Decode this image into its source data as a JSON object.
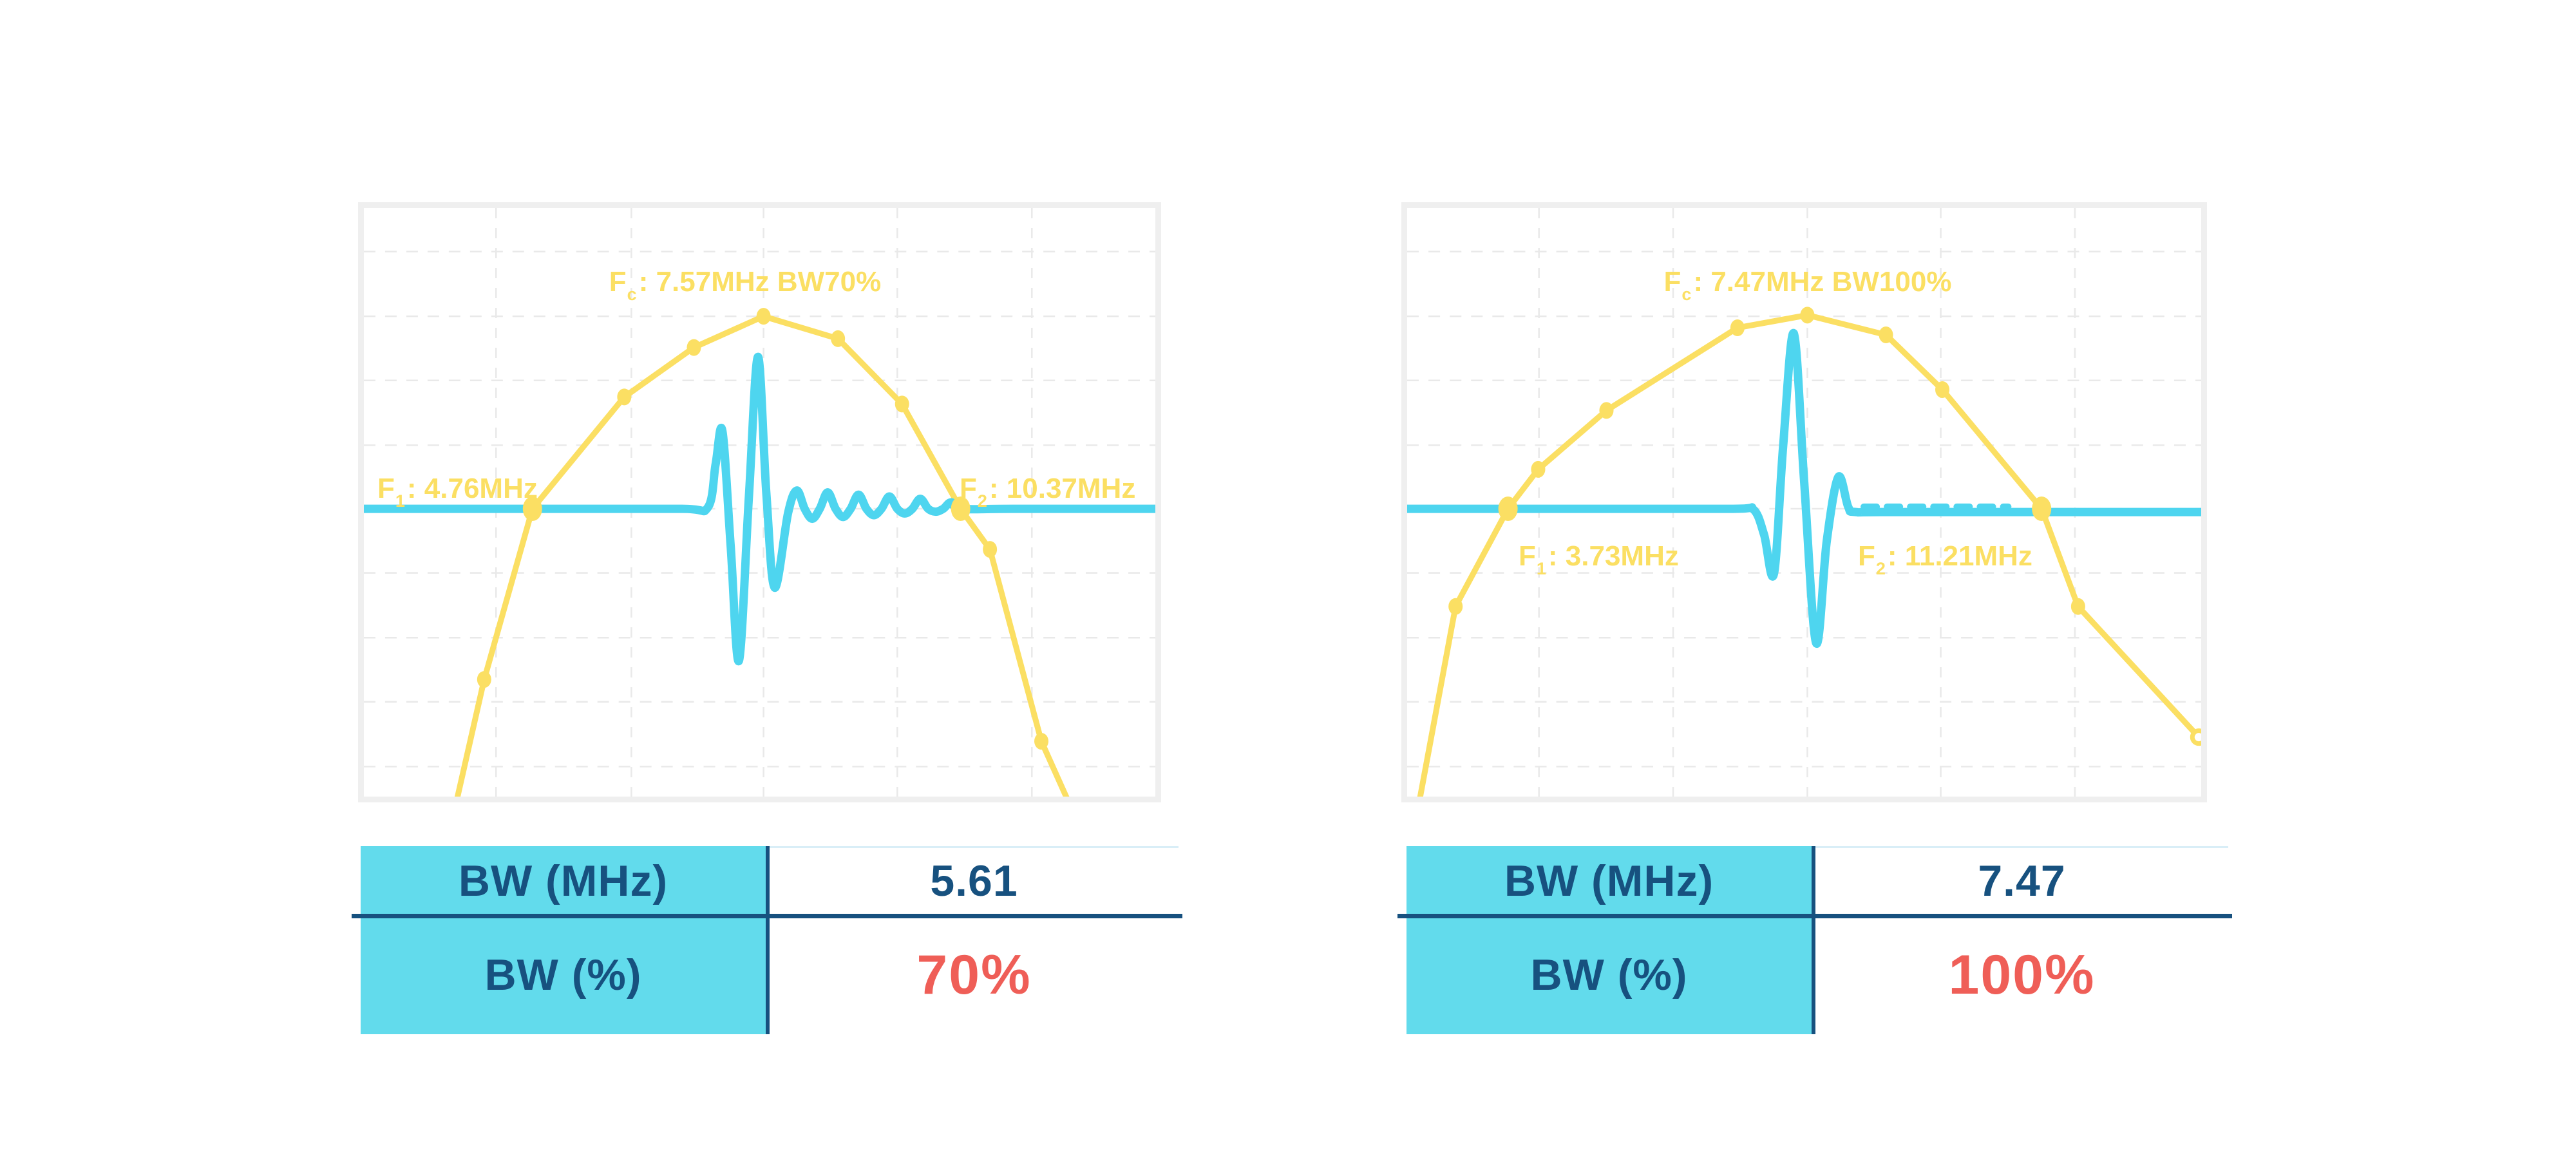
{
  "colors": {
    "yellow": "#FBDF63",
    "cyan": "#4ED5EF",
    "tableCyan": "#62DBEC",
    "navy": "#17517F",
    "red": "#EF5E57",
    "panelBorder": "#EFEFEF",
    "grid": "#E9E9E9",
    "faint": "#D9EEF7",
    "background": "#FFFFFF"
  },
  "panels": [
    {
      "fc": {
        "base": "F",
        "sub": "c",
        "rest": ": 7.57MHz BW70%"
      },
      "f1": {
        "base": "F",
        "sub": "1",
        "rest": ": 4.76MHz"
      },
      "f2": {
        "base": "F",
        "sub": "2",
        "rest": ": 10.37MHz"
      },
      "table": {
        "rows": [
          {
            "label": "BW (MHz)",
            "value": "5.61"
          },
          {
            "label": "BW (%)",
            "value": "70%"
          }
        ]
      }
    },
    {
      "fc": {
        "base": "F",
        "sub": "c",
        "rest": ": 7.47MHz BW100%"
      },
      "f1": {
        "base": "F",
        "sub": "1",
        "rest": ": 3.73MHz"
      },
      "f2": {
        "base": "F",
        "sub": "2",
        "rest": ": 11.21MHz"
      },
      "table": {
        "rows": [
          {
            "label": "BW (MHz)",
            "value": "7.47"
          },
          {
            "label": "BW (%)",
            "value": "100%"
          }
        ]
      }
    }
  ],
  "chart_data": [
    {
      "type": "line",
      "title": "Fc: 7.57MHz BW70%",
      "xlabel": "frequency (MHz, axis unlabeled)",
      "ylabel": "relative amplitude (axis unlabeled)",
      "legend": "none",
      "grid": {
        "style": "dashed",
        "v": [
          0.167,
          0.338,
          0.505,
          0.674,
          0.844
        ],
        "h": [
          0.074,
          0.184,
          0.293,
          0.403,
          0.511,
          0.62,
          0.73,
          0.839,
          0.949
        ]
      },
      "key_values": {
        "fc_mhz": 7.57,
        "f1_mhz": 4.76,
        "f2_mhz": 10.37,
        "bw_mhz": 5.61,
        "bw_percent": 70,
        "baseline_y_fraction": 0.511
      },
      "series": [
        {
          "name": "transducer-frequency-spectrum",
          "color": "#FBDF63",
          "width": 9,
          "smooth": false,
          "points": [
            [
              0.115,
              1.02
            ],
            [
              0.152,
              0.801
            ],
            [
              0.213,
              0.511
            ],
            [
              0.329,
              0.321
            ],
            [
              0.417,
              0.237
            ],
            [
              0.505,
              0.184
            ],
            [
              0.599,
              0.222
            ],
            [
              0.68,
              0.333
            ],
            [
              0.754,
              0.511
            ],
            [
              0.791,
              0.58
            ],
            [
              0.856,
              0.906
            ],
            [
              0.904,
              1.05
            ]
          ],
          "markers": {
            "small": [
              [
                0.152,
                0.801
              ],
              [
                0.329,
                0.321
              ],
              [
                0.417,
                0.237
              ],
              [
                0.505,
                0.184
              ],
              [
                0.599,
                0.222
              ],
              [
                0.68,
                0.333
              ],
              [
                0.791,
                0.58
              ],
              [
                0.856,
                0.906
              ]
            ],
            "big": [
              [
                0.213,
                0.511
              ],
              [
                0.754,
                0.511
              ]
            ]
          }
        },
        {
          "name": "pulse-echo-waveform",
          "color": "#4ED5EF",
          "width": 13,
          "smooth": true,
          "points": [
            [
              0,
              0.511
            ],
            [
              0.22,
              0.511
            ],
            [
              0.4,
              0.511
            ],
            [
              0.4345,
              0.509
            ],
            [
              0.4445,
              0.435
            ],
            [
              0.453,
              0.379
            ],
            [
              0.4635,
              0.575
            ],
            [
              0.474,
              0.769
            ],
            [
              0.4865,
              0.49
            ],
            [
              0.498,
              0.253
            ],
            [
              0.5085,
              0.485
            ],
            [
              0.519,
              0.645
            ],
            [
              0.536,
              0.518
            ],
            [
              0.547,
              0.48
            ],
            [
              0.557,
              0.511
            ],
            [
              0.5665,
              0.528
            ],
            [
              0.576,
              0.511
            ],
            [
              0.586,
              0.483
            ],
            [
              0.596,
              0.511
            ],
            [
              0.6055,
              0.525
            ],
            [
              0.615,
              0.511
            ],
            [
              0.625,
              0.487
            ],
            [
              0.635,
              0.511
            ],
            [
              0.6445,
              0.522
            ],
            [
              0.654,
              0.511
            ],
            [
              0.664,
              0.49
            ],
            [
              0.674,
              0.511
            ],
            [
              0.6835,
              0.519
            ],
            [
              0.693,
              0.511
            ],
            [
              0.703,
              0.494
            ],
            [
              0.713,
              0.511
            ],
            [
              0.7225,
              0.516
            ],
            [
              0.732,
              0.511
            ],
            [
              0.742,
              0.5
            ],
            [
              0.754,
              0.511
            ],
            [
              0.82,
              0.511
            ],
            [
              1,
              0.511
            ]
          ]
        }
      ]
    },
    {
      "type": "line",
      "title": "Fc: 7.47MHz BW100%",
      "xlabel": "frequency (MHz, axis unlabeled)",
      "ylabel": "relative amplitude (axis unlabeled)",
      "legend": "none",
      "grid": {
        "style": "dashed",
        "v": [
          0.166,
          0.335,
          0.504,
          0.672,
          0.841
        ],
        "h": [
          0.074,
          0.184,
          0.293,
          0.403,
          0.511,
          0.62,
          0.73,
          0.839,
          0.949
        ]
      },
      "key_values": {
        "fc_mhz": 7.47,
        "f1_mhz": 3.73,
        "f2_mhz": 11.21,
        "bw_mhz": 7.47,
        "bw_percent": 100,
        "baseline_y_fraction": 0.511
      },
      "series": [
        {
          "name": "transducer-frequency-spectrum",
          "color": "#FBDF63",
          "width": 9,
          "smooth": false,
          "points": [
            [
              0.011,
              1.04
            ],
            [
              0.061,
              0.677
            ],
            [
              0.127,
              0.511
            ],
            [
              0.165,
              0.444
            ],
            [
              0.251,
              0.344
            ],
            [
              0.416,
              0.2035
            ],
            [
              0.504,
              0.182
            ],
            [
              0.603,
              0.2155
            ],
            [
              0.674,
              0.3085
            ],
            [
              0.799,
              0.511
            ],
            [
              0.845,
              0.677
            ],
            [
              0.997,
              0.899
            ]
          ],
          "markers": {
            "small": [
              [
                0.061,
                0.677
              ],
              [
                0.165,
                0.444
              ],
              [
                0.251,
                0.344
              ],
              [
                0.416,
                0.2035
              ],
              [
                0.504,
                0.182
              ],
              [
                0.603,
                0.2155
              ],
              [
                0.674,
                0.3085
              ],
              [
                0.845,
                0.677
              ]
            ],
            "big": [
              [
                0.127,
                0.511
              ],
              [
                0.799,
                0.511
              ]
            ],
            "ring": [
              [
                0.997,
                0.899
              ]
            ]
          }
        },
        {
          "name": "pulse-echo-waveform",
          "color": "#4ED5EF",
          "width": 13,
          "smooth": true,
          "points": [
            [
              0,
              0.511
            ],
            [
              0.22,
              0.511
            ],
            [
              0.41,
              0.511
            ],
            [
              0.436,
              0.512
            ],
            [
              0.4495,
              0.555
            ],
            [
              0.462,
              0.621
            ],
            [
              0.4735,
              0.405
            ],
            [
              0.487,
              0.213
            ],
            [
              0.5,
              0.465
            ],
            [
              0.515,
              0.739
            ],
            [
              0.5285,
              0.565
            ],
            [
              0.543,
              0.457
            ],
            [
              0.5555,
              0.508
            ],
            [
              0.565,
              0.5165
            ],
            [
              0.62,
              0.5165
            ],
            [
              1,
              0.5165
            ]
          ]
        },
        {
          "name": "ripple-remnant-dashes",
          "color": "#4ED5EF",
          "width": 10,
          "smooth": false,
          "dash": [
            20,
            16
          ],
          "points": [
            [
              0.575,
              0.5075
            ],
            [
              0.757,
              0.5075
            ]
          ]
        }
      ]
    }
  ]
}
